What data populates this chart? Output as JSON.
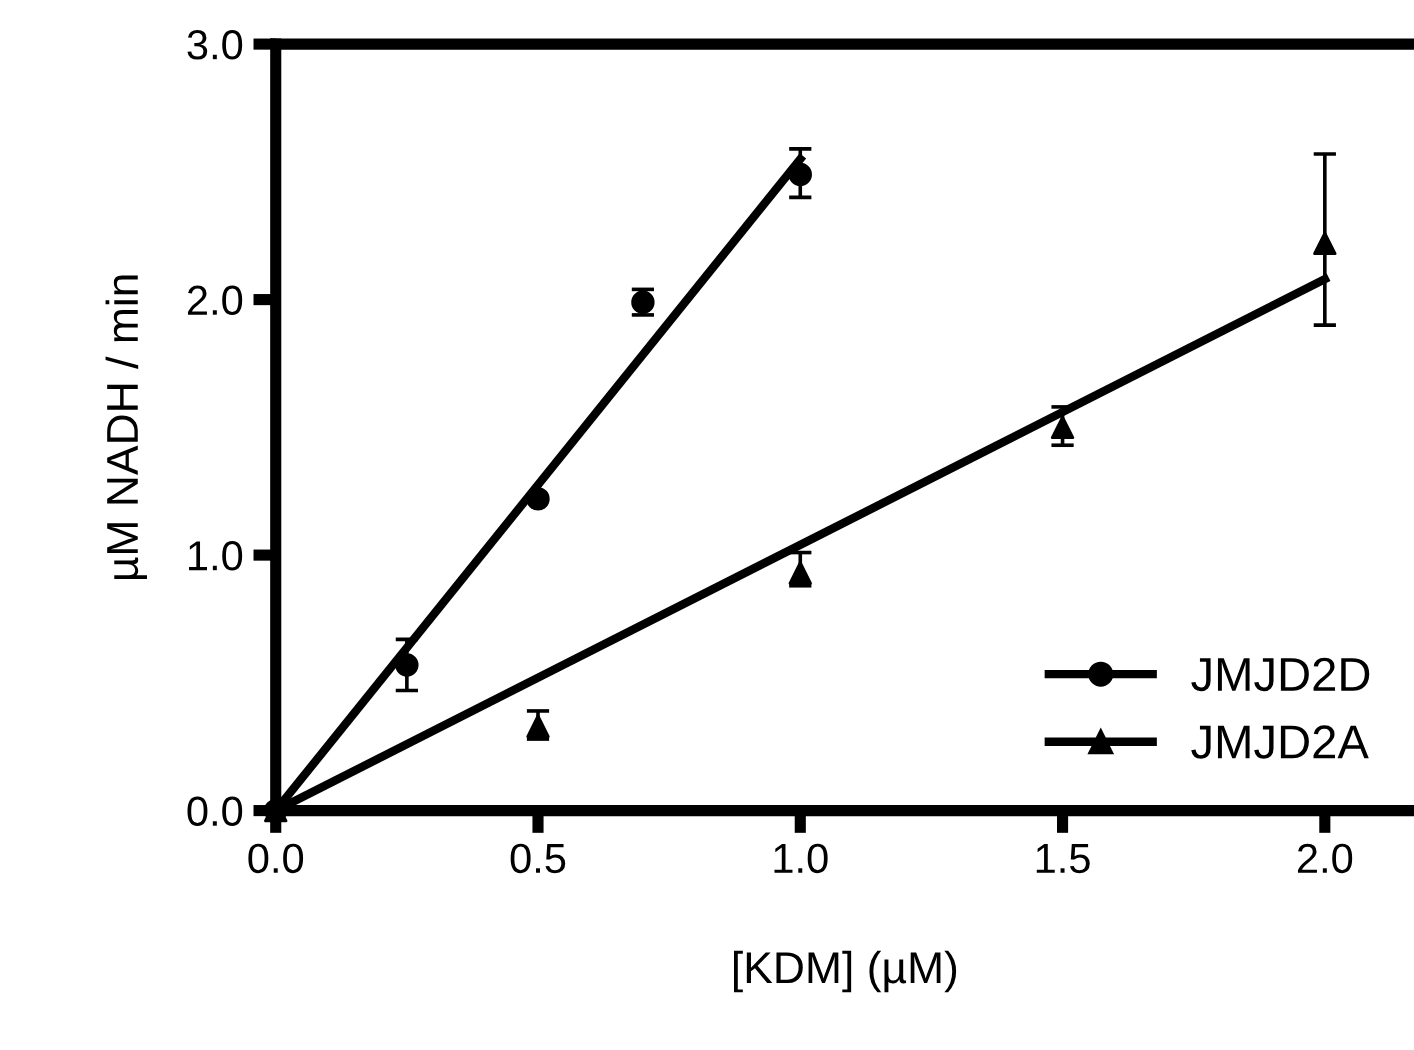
{
  "chart_data": {
    "type": "scatter",
    "xlabel": "[KDM] (µM)",
    "ylabel": "µM NADH / min",
    "xlim": [
      0,
      2.17
    ],
    "ylim": [
      0,
      3.0
    ],
    "xticks": [
      {
        "value": 0,
        "label": "0.0"
      },
      {
        "value": 0.5,
        "label": "0.5"
      },
      {
        "value": 1.0,
        "label": "1.0"
      },
      {
        "value": 1.5,
        "label": "1.5"
      },
      {
        "value": 2.0,
        "label": "2.0"
      }
    ],
    "yticks": [
      {
        "value": 0,
        "label": "0.0"
      },
      {
        "value": 1.0,
        "label": "1.0"
      },
      {
        "value": 2.0,
        "label": "2.0"
      },
      {
        "value": 3.0,
        "label": "3.0"
      }
    ],
    "legend": "bottom right",
    "grid": false,
    "series": [
      {
        "name": "JMJD2D",
        "marker": "circle",
        "color": "#000000",
        "x": [
          0,
          0.25,
          0.5,
          0.7,
          1.0
        ],
        "values": [
          0,
          0.57,
          1.22,
          1.99,
          2.49
        ],
        "errors": [
          null,
          [
            0.47,
            0.67
          ],
          null,
          [
            1.94,
            2.04
          ],
          [
            2.4,
            2.59
          ]
        ]
      },
      {
        "name": "JMJD2A",
        "marker": "triangle",
        "color": "#000000",
        "x": [
          0,
          0.5,
          1.0,
          1.5,
          2.0
        ],
        "values": [
          0,
          0.33,
          0.93,
          1.5,
          2.22
        ],
        "errors": [
          null,
          [
            0.28,
            0.39
          ],
          [
            0.88,
            1.01
          ],
          [
            1.43,
            1.58
          ],
          [
            1.9,
            2.57
          ]
        ]
      },
      {
        "type": "line",
        "color": "#000000",
        "x": [
          0,
          1.0
        ],
        "values": [
          0,
          2.55
        ]
      },
      {
        "type": "line",
        "color": "#000000",
        "x": [
          0,
          2.0
        ],
        "values": [
          0,
          2.08
        ]
      }
    ]
  }
}
